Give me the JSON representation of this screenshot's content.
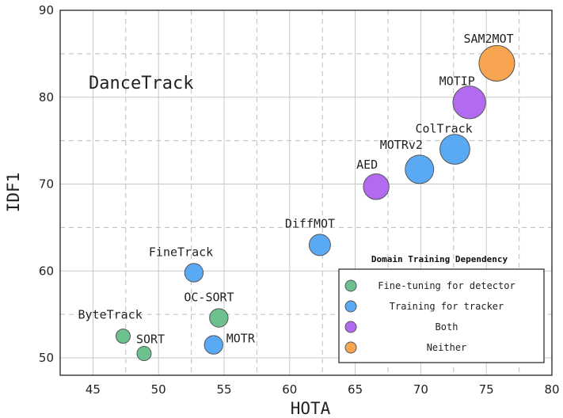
{
  "chart_data": {
    "type": "scatter",
    "panel_label": "DanceTrack",
    "xlabel": "HOTA",
    "ylabel": "IDF1",
    "xlim": [
      42.5,
      80
    ],
    "ylim": [
      48,
      90
    ],
    "xticks": [
      45,
      50,
      55,
      60,
      65,
      70,
      75,
      80
    ],
    "yticks": [
      50,
      60,
      70,
      80,
      90
    ],
    "xtick_labels": [
      "45",
      "50",
      "55",
      "60",
      "65",
      "70",
      "75",
      "80"
    ],
    "ytick_labels": [
      "50",
      "60",
      "70",
      "80",
      "90"
    ],
    "grid": true,
    "legend": {
      "title": "Domain Training Dependency",
      "placement": "lower-right",
      "entries": [
        {
          "label": "Fine-tuning for detector",
          "color": "#6cc18f"
        },
        {
          "label": "Training for tracker",
          "color": "#5aa9f5"
        },
        {
          "label": "Both",
          "color": "#b26bf0"
        },
        {
          "label": "Neither",
          "color": "#f8a551"
        }
      ]
    },
    "points": [
      {
        "label": "SORT",
        "x": 48.9,
        "y": 50.5,
        "category": 0,
        "size": 1
      },
      {
        "label": "ByteTrack",
        "x": 47.3,
        "y": 52.5,
        "category": 0,
        "size": 1
      },
      {
        "label": "OC-SORT",
        "x": 54.6,
        "y": 54.6,
        "category": 0,
        "size": 1.3
      },
      {
        "label": "MOTR",
        "x": 54.2,
        "y": 51.5,
        "category": 1,
        "size": 1.3
      },
      {
        "label": "FineTrack",
        "x": 52.7,
        "y": 59.8,
        "category": 1,
        "size": 1.3
      },
      {
        "label": "DiffMOT",
        "x": 62.3,
        "y": 63.0,
        "category": 1,
        "size": 1.5
      },
      {
        "label": "AED",
        "x": 66.6,
        "y": 69.7,
        "category": 2,
        "size": 1.8
      },
      {
        "label": "MOTRv2",
        "x": 69.9,
        "y": 71.7,
        "category": 1,
        "size": 2.0
      },
      {
        "label": "ColTrack",
        "x": 72.6,
        "y": 74.0,
        "category": 1,
        "size": 2.1
      },
      {
        "label": "MOTIP",
        "x": 73.7,
        "y": 79.4,
        "category": 2,
        "size": 2.3
      },
      {
        "label": "SAM2MOT",
        "x": 75.8,
        "y": 83.9,
        "category": 3,
        "size": 2.5
      }
    ]
  }
}
